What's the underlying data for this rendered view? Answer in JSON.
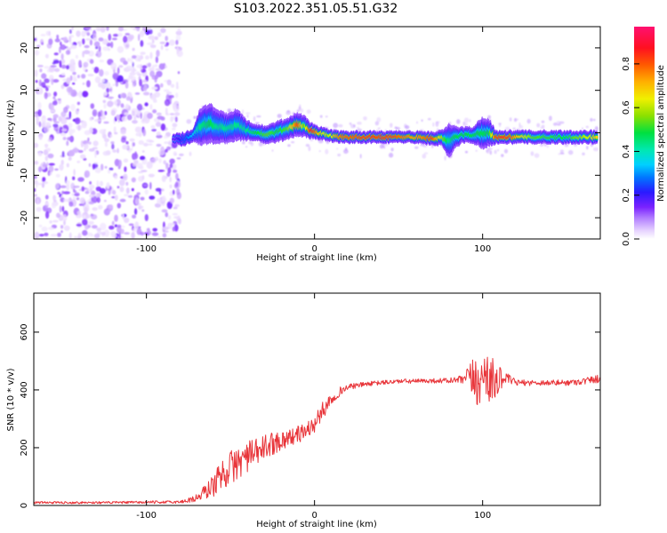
{
  "title": "S103.2022.351.05.51.G32",
  "chart_data": [
    {
      "type": "heatmap",
      "xlabel": "Height of straight line (km)",
      "ylabel": "Frequency (Hz)",
      "xlim": [
        -167,
        170
      ],
      "ylim": [
        -25,
        25
      ],
      "xticks": [
        -100,
        0,
        100
      ],
      "yticks": [
        -20,
        -10,
        0,
        10,
        20
      ],
      "colorbar": {
        "label": "Normalized spectral amplitude",
        "range": [
          0,
          0.97
        ],
        "ticks": [
          "0.0",
          "0.2",
          "0.4",
          "0.6",
          "0.8"
        ],
        "ticks_values": [
          0,
          0.2,
          0.4,
          0.6,
          0.8
        ]
      },
      "noise_region_x": [
        -167,
        -80
      ],
      "ridge": {
        "x": [
          -84,
          -78,
          -72,
          -68,
          -62,
          -58,
          -52,
          -46,
          -40,
          -34,
          -28,
          -22,
          -16,
          -10,
          -6,
          -2,
          2,
          8,
          15,
          30,
          45,
          60,
          70,
          76,
          80,
          84,
          88,
          94,
          100,
          104,
          108,
          115,
          130,
          150,
          168
        ],
        "freq": [
          -1.5,
          -1.5,
          -0.5,
          1.5,
          2.2,
          1.5,
          1.0,
          2.0,
          0.5,
          0.0,
          -0.5,
          0.3,
          1.0,
          2.0,
          1.5,
          0.5,
          0.0,
          -0.5,
          -1.0,
          -1.0,
          -1.0,
          -1.0,
          -1.3,
          -1.3,
          -2.0,
          -1.0,
          -0.5,
          -0.5,
          0.0,
          0.0,
          -1.0,
          -1.0,
          -1.0,
          -1.0,
          -1.0
        ],
        "width": [
          0.8,
          1.0,
          1.0,
          2.8,
          3.0,
          2.6,
          2.2,
          2.4,
          1.5,
          1.2,
          1.4,
          1.6,
          1.6,
          1.8,
          1.6,
          1.2,
          1.0,
          0.9,
          0.9,
          0.9,
          0.9,
          0.9,
          1.0,
          1.2,
          2.6,
          1.6,
          1.2,
          1.2,
          2.4,
          2.0,
          1.0,
          1.0,
          1.0,
          1.0,
          1.0
        ],
        "amplitude": [
          0.15,
          0.25,
          0.35,
          0.45,
          0.5,
          0.45,
          0.45,
          0.45,
          0.45,
          0.5,
          0.55,
          0.5,
          0.55,
          0.85,
          0.55,
          0.9,
          0.75,
          0.6,
          0.8,
          0.85,
          0.85,
          0.75,
          0.85,
          0.6,
          0.45,
          0.5,
          0.5,
          0.5,
          0.5,
          0.5,
          0.85,
          0.85,
          0.55,
          0.5,
          0.7
        ]
      }
    },
    {
      "type": "line",
      "xlabel": "Height of straight line (km)",
      "ylabel": "SNR (10 * v/v)",
      "xlim": [
        -167,
        170
      ],
      "ylim": [
        0,
        735
      ],
      "xticks": [
        -100,
        0,
        100
      ],
      "yticks": [
        0,
        200,
        400,
        600
      ],
      "series": [
        {
          "color": "#e8353a",
          "x": [
            -167,
            -120,
            -80,
            -70,
            -60,
            -55,
            -50,
            -45,
            -40,
            -35,
            -30,
            -25,
            -20,
            -15,
            -10,
            -5,
            0,
            5,
            10,
            15,
            20,
            30,
            40,
            50,
            60,
            70,
            80,
            88,
            92,
            96,
            100,
            103,
            106,
            110,
            114,
            120,
            130,
            140,
            150,
            160,
            170
          ],
          "y": [
            10,
            10,
            12,
            25,
            70,
            110,
            130,
            150,
            170,
            180,
            200,
            215,
            225,
            235,
            245,
            260,
            280,
            330,
            370,
            395,
            410,
            420,
            425,
            430,
            430,
            432,
            432,
            435,
            440,
            430,
            430,
            480,
            420,
            440,
            440,
            425,
            425,
            425,
            425,
            430,
            440
          ],
          "noise_amplitude": [
            4,
            4,
            5,
            15,
            40,
            55,
            60,
            60,
            55,
            50,
            45,
            40,
            35,
            30,
            30,
            30,
            30,
            30,
            25,
            15,
            10,
            8,
            8,
            8,
            8,
            8,
            10,
            15,
            50,
            90,
            80,
            130,
            90,
            40,
            20,
            10,
            10,
            10,
            10,
            12,
            15
          ]
        }
      ]
    }
  ]
}
